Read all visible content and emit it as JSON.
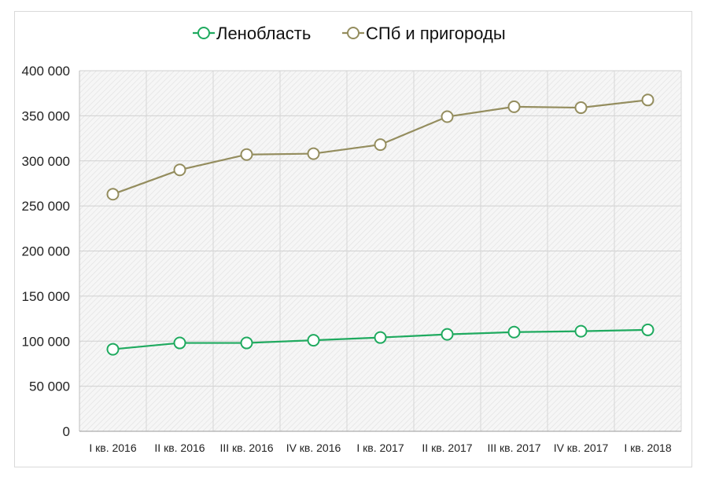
{
  "chart_data": {
    "type": "line",
    "categories": [
      "I кв. 2016",
      "II кв. 2016",
      "III кв. 2016",
      "IV кв. 2016",
      "I кв. 2017",
      "II кв. 2017",
      "III кв. 2017",
      "IV кв. 2017",
      "I кв. 2018"
    ],
    "series": [
      {
        "name": "Ленобласть",
        "color": "#1faa5f",
        "values": [
          91000,
          98000,
          98000,
          101000,
          104000,
          107500,
          110000,
          111000,
          112500
        ]
      },
      {
        "name": "СПб и пригороды",
        "color": "#948d5e",
        "values": [
          263000,
          290000,
          307000,
          308000,
          318000,
          349000,
          360000,
          359000,
          367500
        ]
      }
    ],
    "ylim": [
      0,
      400000
    ],
    "yticks": [
      0,
      50000,
      100000,
      150000,
      200000,
      250000,
      300000,
      350000,
      400000
    ],
    "ytick_labels": [
      "0",
      "50 000",
      "100 000",
      "150 000",
      "200 000",
      "250 000",
      "300 000",
      "350 000",
      "400 000"
    ],
    "grid": true,
    "legend_position": "top",
    "plot_background": "#f2f2f2"
  }
}
